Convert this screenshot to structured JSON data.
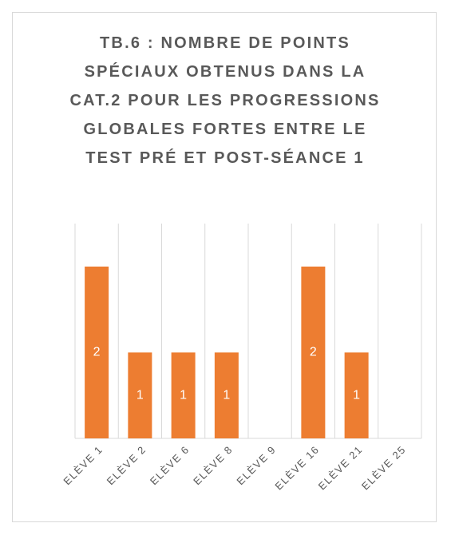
{
  "chart_data": {
    "type": "bar",
    "title": "TB.6 : NOMBRE DE POINTS SPÉCIAUX OBTENUS DANS LA CAT.2 POUR LES PROGRESSIONS GLOBALES FORTES ENTRE LE TEST PRÉ ET POST-SÉANCE 1",
    "categories": [
      "ELÈVE 1",
      "ELÈVE 2",
      "ELÈVE 6",
      "ELÈVE 8",
      "ELÈVE 9",
      "ELÈVE 16",
      "ELÈVE 21",
      "ELÈVE 25"
    ],
    "values": [
      2,
      1,
      1,
      1,
      0,
      2,
      1,
      0
    ],
    "color": "#ed7d31",
    "ylim": [
      0,
      2.5
    ],
    "grid": true
  }
}
